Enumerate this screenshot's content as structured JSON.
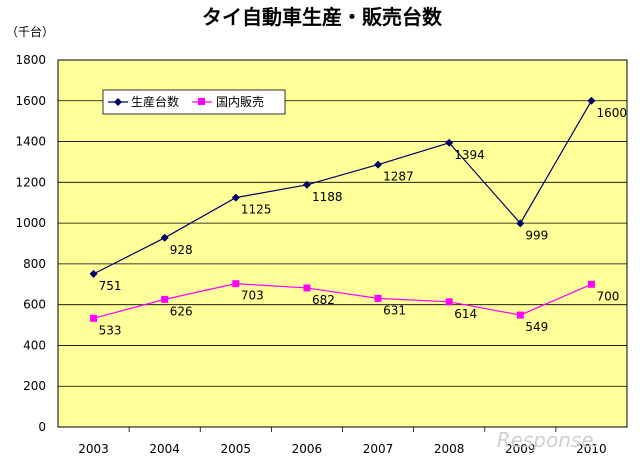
{
  "chart_data": {
    "type": "line",
    "title": "タイ自動車生産・販売台数",
    "ylabel": "（千台）",
    "categories": [
      "2003",
      "2004",
      "2005",
      "2006",
      "2007",
      "2008",
      "2009",
      "2010"
    ],
    "ylim": [
      0,
      1800
    ],
    "yticks": [
      0,
      200,
      400,
      600,
      800,
      1000,
      1200,
      1400,
      1600,
      1800
    ],
    "grid": true,
    "legend_position": "top-left",
    "background_color": "#ffff99",
    "series": [
      {
        "name": "生産台数",
        "values": [
          751,
          928,
          1125,
          1188,
          1287,
          1394,
          999,
          1600
        ],
        "color": "#000066",
        "marker": "diamond"
      },
      {
        "name": "国内販売",
        "values": [
          533,
          626,
          703,
          682,
          631,
          614,
          549,
          700
        ],
        "color": "#ff00ff",
        "marker": "square"
      }
    ]
  },
  "watermark": "Response."
}
